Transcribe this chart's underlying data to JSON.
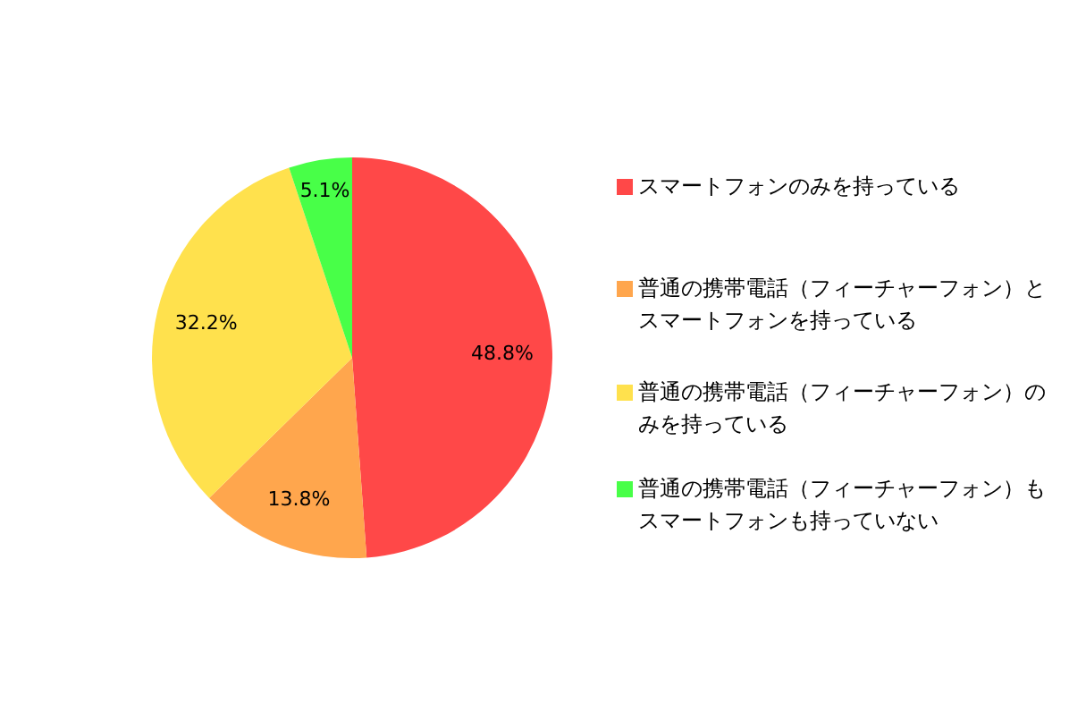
{
  "chart_data": {
    "type": "pie",
    "categories": [
      "スマートフォンのみを持っている",
      "普通の携帯電話（フィーチャーフォン）とスマートフォンを持っている",
      "普通の携帯電話（フィーチャーフォン）のみを持っている",
      "普通の携帯電話（フィーチャーフォン）もスマートフォンも持っていない"
    ],
    "values": [
      48.8,
      13.8,
      32.2,
      5.1
    ],
    "colors": [
      "#ff4848",
      "#ffa64d",
      "#ffe14d",
      "#48ff48"
    ],
    "value_labels": [
      "48.8%",
      "13.8%",
      "32.2%",
      "5.1%"
    ],
    "legend": "right"
  }
}
